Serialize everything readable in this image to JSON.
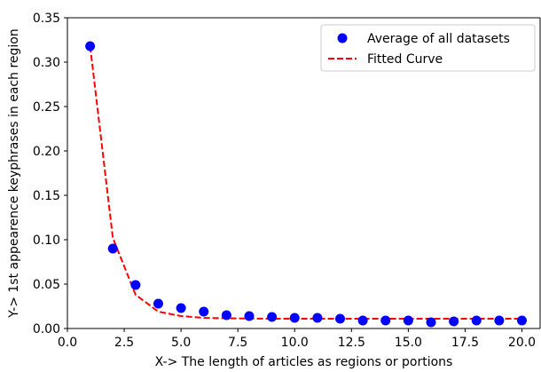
{
  "chart_data": {
    "type": "scatter",
    "title": "",
    "xlabel": "X-> The length of  articles as regions or portions",
    "ylabel": "Y-> 1st appearence keyphrases in each region",
    "xlim": [
      0.0,
      20.8
    ],
    "ylim": [
      0.0,
      0.35
    ],
    "xticks": [
      0.0,
      2.5,
      5.0,
      7.5,
      10.0,
      12.5,
      15.0,
      17.5,
      20.0
    ],
    "xtick_labels": [
      "0.0",
      "2.5",
      "5.0",
      "7.5",
      "10.0",
      "12.5",
      "15.0",
      "17.5",
      "20.0"
    ],
    "yticks": [
      0.0,
      0.05,
      0.1,
      0.15,
      0.2,
      0.25,
      0.3,
      0.35
    ],
    "ytick_labels": [
      "0.00",
      "0.05",
      "0.10",
      "0.15",
      "0.20",
      "0.25",
      "0.30",
      "0.35"
    ],
    "grid": false,
    "legend_position": "top-right",
    "series": [
      {
        "name": "Average of all datasets",
        "kind": "scatter",
        "color": "#0000ff",
        "x": [
          1,
          2,
          3,
          4,
          5,
          6,
          7,
          8,
          9,
          10,
          11,
          12,
          13,
          14,
          15,
          16,
          17,
          18,
          19,
          20
        ],
        "y": [
          0.318,
          0.09,
          0.049,
          0.028,
          0.023,
          0.019,
          0.015,
          0.014,
          0.013,
          0.012,
          0.012,
          0.011,
          0.009,
          0.009,
          0.009,
          0.007,
          0.008,
          0.009,
          0.009,
          0.009
        ]
      },
      {
        "name": "Fitted Curve",
        "kind": "line",
        "style": "dashed",
        "color": "#ff0000",
        "x": [
          1,
          2,
          3,
          4,
          5,
          6,
          7,
          8,
          9,
          10,
          11,
          12,
          13,
          14,
          15,
          16,
          17,
          18,
          19,
          20
        ],
        "y": [
          0.318,
          0.102,
          0.038,
          0.019,
          0.014,
          0.012,
          0.0115,
          0.0112,
          0.011,
          0.011,
          0.011,
          0.011,
          0.011,
          0.011,
          0.011,
          0.011,
          0.011,
          0.011,
          0.011,
          0.011
        ]
      }
    ]
  }
}
